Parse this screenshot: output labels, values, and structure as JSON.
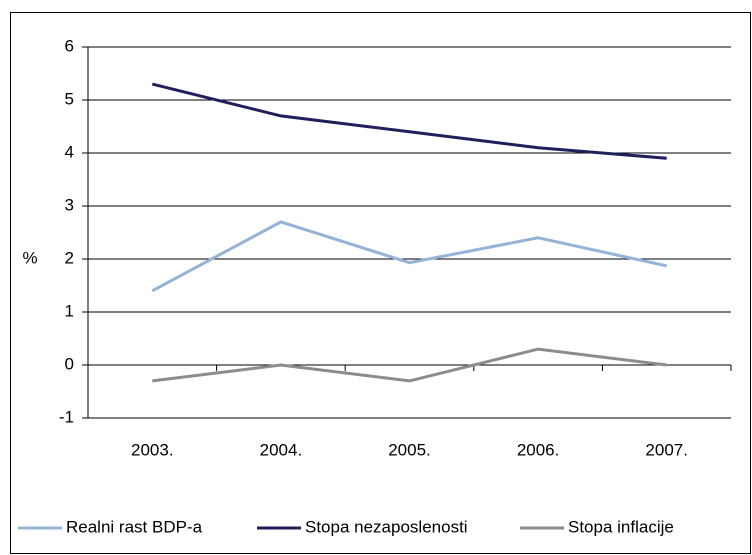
{
  "chart_data": {
    "type": "line",
    "y_label": "%",
    "categories": [
      "2003.",
      "2004.",
      "2005.",
      "2006.",
      "2007."
    ],
    "series": [
      {
        "name": "Realni rast BDP-a",
        "color": "#95b3d7",
        "values": [
          1.4,
          2.7,
          1.93,
          2.4,
          1.87
        ]
      },
      {
        "name": "Stopa nezaposlenosti",
        "color": "#1f1f5c",
        "values": [
          5.3,
          4.7,
          4.4,
          4.1,
          3.9
        ]
      },
      {
        "name": "Stopa inflacije",
        "color": "#8c8c8c",
        "values": [
          -0.3,
          0,
          -0.3,
          0.3,
          0
        ]
      }
    ],
    "ylim": [
      -1,
      6
    ],
    "yticks": [
      -1,
      0,
      1,
      2,
      3,
      4,
      5,
      6
    ],
    "grid": true,
    "legend": "bottom"
  }
}
